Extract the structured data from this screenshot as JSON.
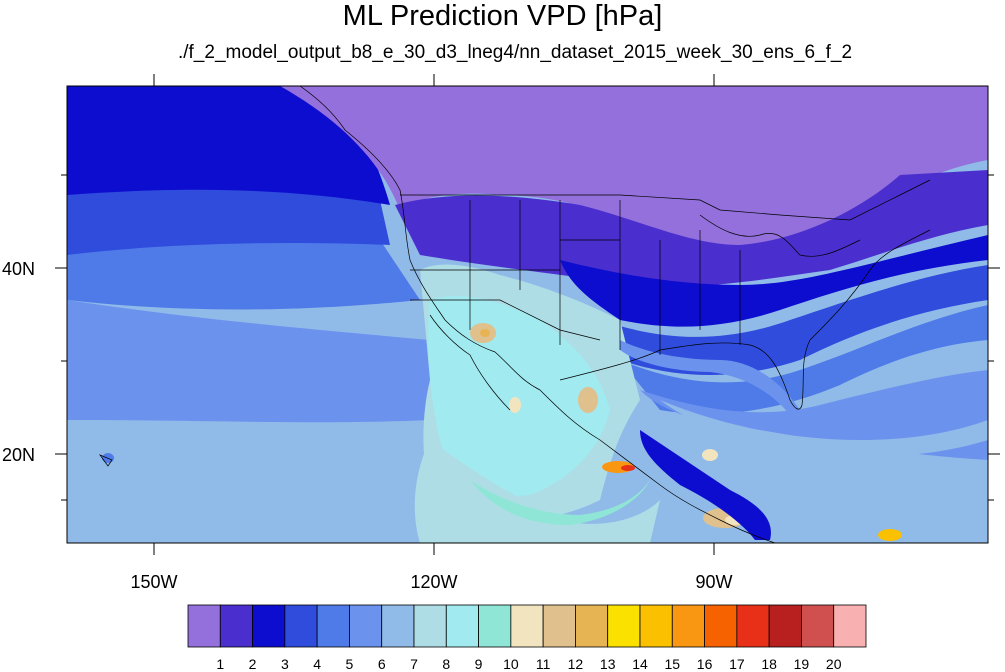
{
  "title": "ML Prediction VPD [hPa]",
  "subtitle": "./f_2_model_output_b8_e_30_d3_lneg4/nn_dataset_2015_week_30_ens_6_f_2",
  "axes": {
    "lat_labels": [
      "40N",
      "20N"
    ],
    "lon_labels": [
      "150W",
      "120W",
      "90W"
    ]
  },
  "colorbar": {
    "labels": [
      "1",
      "2",
      "3",
      "4",
      "5",
      "6",
      "7",
      "8",
      "9",
      "10",
      "11",
      "12",
      "13",
      "14",
      "15",
      "16",
      "17",
      "18",
      "19",
      "20"
    ],
    "colors": [
      "#9370DB",
      "#4A2FCE",
      "#0D0DCF",
      "#2F4CDD",
      "#4F7BE8",
      "#6B93EE",
      "#90BBE8",
      "#AEDDE6",
      "#A0EAF0",
      "#90E6D6",
      "#F2E4BE",
      "#E0C08C",
      "#E6B452",
      "#FBE100",
      "#FBC000",
      "#F99712",
      "#F76200",
      "#E83018",
      "#B82020",
      "#D05050",
      "#F8B0B0"
    ]
  },
  "map": {
    "projection": "cylindrical-equidistant",
    "lon_range": [
      -160,
      -65
    ],
    "lat_range": [
      11,
      60
    ]
  }
}
